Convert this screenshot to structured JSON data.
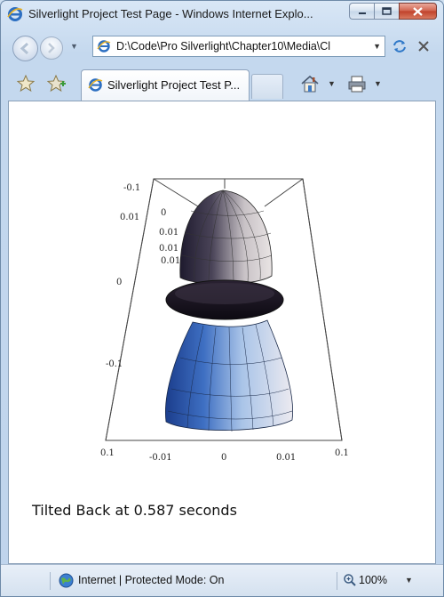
{
  "window": {
    "title": "Silverlight Project Test Page - Windows Internet Explo..."
  },
  "nav": {
    "address": "D:\\Code\\Pro Silverlight\\Chapter10\\Media\\Cl"
  },
  "tabs": [
    {
      "label": "Silverlight Project Test P..."
    }
  ],
  "content": {
    "plot_labels": {
      "y_left_top": "-0.1",
      "y_left_upper": "0.01",
      "y_left_mid": "0",
      "y_left_lower": "-0.1",
      "ticks_small": [
        "0",
        "0.01",
        "0.01",
        "0.01"
      ],
      "x_axis": [
        "0.1",
        "-0.01",
        "0",
        "0.01",
        "0.1"
      ]
    },
    "status_text": "Tilted Back at 0.587 seconds"
  },
  "statusbar": {
    "zone": "Internet | Protected Mode: On",
    "zoom": "100%"
  },
  "colors": {
    "chrome": "#c4d8ee",
    "close_button": "#c0402a"
  }
}
